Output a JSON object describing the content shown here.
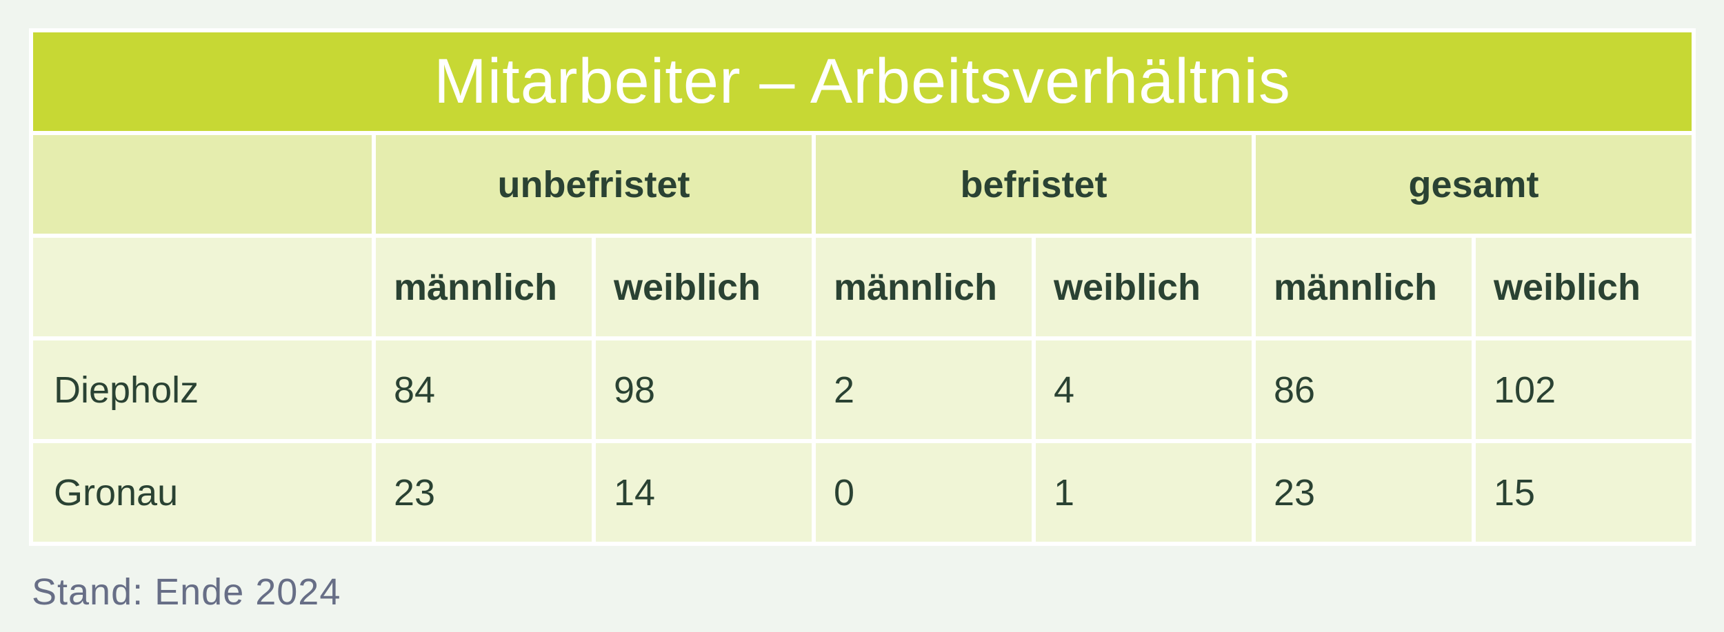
{
  "chart_data": {
    "type": "table",
    "title": "Mitarbeiter – Arbeitsverhältnis",
    "group_headers": [
      "unbefristet",
      "befristet",
      "gesamt"
    ],
    "sub_headers": [
      "männlich",
      "weiblich",
      "männlich",
      "weiblich",
      "männlich",
      "weiblich"
    ],
    "rows": [
      {
        "label": "Diepholz",
        "values": [
          "84",
          "98",
          "2",
          "4",
          "86",
          "102"
        ]
      },
      {
        "label": "Gronau",
        "values": [
          "23",
          "14",
          "0",
          "1",
          "23",
          "15"
        ]
      }
    ],
    "footnote": "Stand: Ende 2024",
    "layout": {
      "legend_position": "none",
      "grid": "white gridlines between cells",
      "column_groups_span": 2
    },
    "colors": {
      "page_background": "#f0f5ef",
      "title_bar_background": "#c7d834",
      "title_text": "#ffffff",
      "group_header_background": "#e5edae",
      "cell_background": "#f0f5d6",
      "cell_text": "#2a4233",
      "gridline": "#ffffff",
      "footnote_text": "#676e86"
    }
  }
}
